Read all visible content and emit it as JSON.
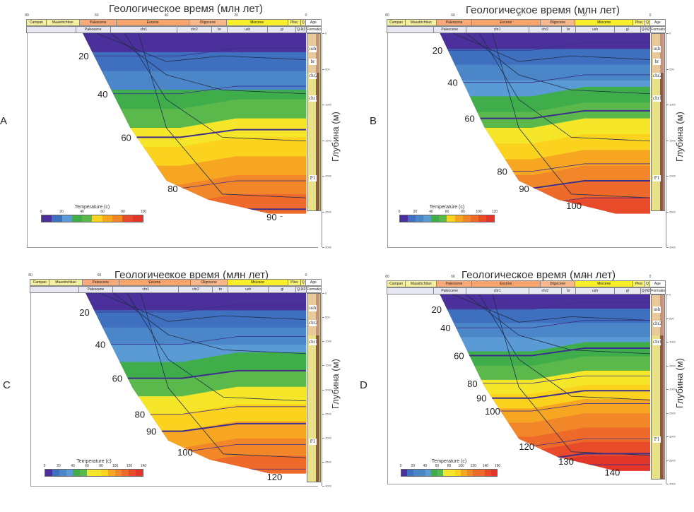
{
  "colors": {
    "t0": "#4b2f9a",
    "t10": "#3f6fbf",
    "t20": "#4a86c8",
    "t30": "#5a9bd6",
    "t40": "#3fae4a",
    "t50": "#5bb84a",
    "t60": "#f5e62a",
    "t70": "#fbd21e",
    "t80": "#f7a622",
    "t90": "#f2872a",
    "t100": "#ee6a2a",
    "t110": "#e84a2a",
    "t120": "#e2362a",
    "isoline": "#3d2f8a",
    "strat": "#1f2f4a",
    "age_campan": "#f5f0a0",
    "age_paleo": "#f7a97a",
    "age_eocene": "#f6a36c",
    "age_oligo": "#f8b78a",
    "age_miocene": "#f7ef2a",
    "age_plioc": "#faf37a",
    "age_q": "#fbf59a",
    "form_bg": "#e8e8f2",
    "col_sand": "#e9e08a",
    "col_shale": "#8a5a45",
    "col_pink": "#e8b9a4"
  },
  "axis_title": "Геологическое время (млн лет)",
  "depth_title": "Глубина (м)",
  "age_header": "Age",
  "formation_header": "Formation",
  "time_ticks": [
    "80",
    "60",
    "40",
    "20",
    "0"
  ],
  "ages": [
    "Campan",
    "Maastrichtian",
    "Paleocene",
    "Eocene",
    "Oligocene",
    "Miocene",
    "Plioc",
    "Q"
  ],
  "formations": [
    "Paleocene",
    "chr1",
    "chr2",
    "br",
    "ush",
    "gl",
    "Q-N2"
  ],
  "column_labels_ab": [
    "ush",
    "br",
    "chr2",
    "chr1",
    "P1"
  ],
  "column_labels_cd": [
    "ush",
    "chr2",
    "chr1",
    "P1"
  ],
  "legend_title": "Temperature (c)",
  "panels": [
    {
      "id": "A",
      "depth_ticks": [
        "0",
        "500",
        "1000",
        "1500",
        "2000",
        "2500",
        "3000"
      ],
      "legend_ticks": [
        "0",
        "20",
        "40",
        "60",
        "80",
        "100"
      ],
      "iso_labels": [
        "20",
        "40",
        "60",
        "80",
        "90"
      ]
    },
    {
      "id": "B",
      "depth_ticks": [
        "0",
        "500",
        "1000",
        "1500",
        "2000",
        "2500",
        "3000"
      ],
      "legend_ticks": [
        "0",
        "20",
        "40",
        "60",
        "80",
        "100",
        "120"
      ],
      "iso_labels": [
        "20",
        "40",
        "60",
        "80",
        "90",
        "100"
      ]
    },
    {
      "id": "C",
      "depth_ticks": [
        "0",
        "500",
        "1000",
        "1500",
        "2000",
        "2500",
        "3000",
        "3500",
        "4000"
      ],
      "legend_ticks": [
        "0",
        "20",
        "40",
        "60",
        "80",
        "100",
        "120",
        "140"
      ],
      "iso_labels": [
        "20",
        "40",
        "60",
        "80",
        "90",
        "100",
        "120"
      ]
    },
    {
      "id": "D",
      "depth_ticks": [
        "0",
        "500",
        "1000",
        "1500",
        "2000",
        "2500",
        "3000",
        "3500",
        "4000"
      ],
      "legend_ticks": [
        "0",
        "20",
        "40",
        "60",
        "80",
        "100",
        "120",
        "140",
        "160"
      ],
      "iso_labels": [
        "20",
        "40",
        "60",
        "80",
        "90",
        "100",
        "120",
        "130",
        "140"
      ]
    }
  ]
}
